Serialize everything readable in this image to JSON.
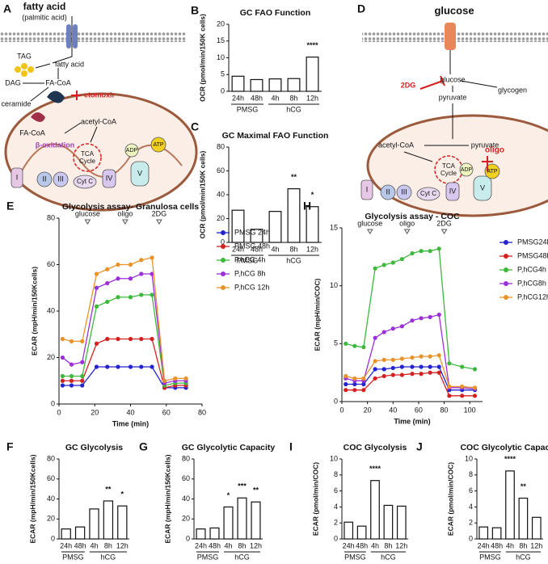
{
  "diagrams": [
    {
      "letter": "A",
      "title": "fatty acid",
      "subtitle": "(palmitic acid)",
      "labels": [
        "TAG",
        "fatty acid",
        "DAG",
        "FA-CoA",
        "etomoxir",
        "ceramide",
        "FA-CoA",
        "acetyl-CoA",
        "β-oxidation",
        "TCA",
        "Cycle",
        "ADP",
        "ATP",
        "I",
        "II",
        "III",
        "Cyt C",
        "IV",
        "V"
      ]
    },
    {
      "letter": "D",
      "title": "glucose",
      "labels": [
        "2DG",
        "glucose",
        "glycogen",
        "pyruvate",
        "acetyl-CoA",
        "pyruvate",
        "TCA",
        "Cycle",
        "oligo",
        "ADP",
        "ATP",
        "I",
        "II",
        "III",
        "Cyt C",
        "IV",
        "V"
      ]
    }
  ],
  "chart_data": [
    {
      "type": "bar",
      "panel": "B",
      "title": "GC FAO Function",
      "ylabel": "OCR (pmol/min/150K cells)",
      "categories": [
        "24h",
        "48h",
        "4h",
        "8h",
        "12h"
      ],
      "groups": [
        {
          "name": "PMSG",
          "size": 2
        },
        {
          "name": "hCG",
          "size": 3
        }
      ],
      "values": [
        4.5,
        3.5,
        3.7,
        3.8,
        10.2
      ],
      "significance": [
        null,
        null,
        null,
        null,
        "****"
      ],
      "ylim": [
        0,
        20
      ],
      "yticks": [
        0,
        5,
        10,
        15,
        20
      ]
    },
    {
      "type": "bar",
      "panel": "C",
      "title": "GC Maximal FAO Function",
      "ylabel": "OCR (pmol/min/150K cells)",
      "categories": [
        "24h",
        "48h",
        "4h",
        "8h",
        "12h"
      ],
      "groups": [
        {
          "name": "PMSG",
          "size": 2
        },
        {
          "name": "hCG",
          "size": 3
        }
      ],
      "values": [
        27,
        11,
        26,
        45,
        30
      ],
      "significance": [
        null,
        null,
        null,
        "**",
        "*"
      ],
      "ylim": [
        0,
        80
      ],
      "yticks": [
        0,
        20,
        40,
        60,
        80
      ]
    },
    {
      "type": "line",
      "panel": "E",
      "title": "Glycolysis assay- Granulosa cells",
      "ylabel": "ECAR (mpH/min/150Kcells)",
      "xlabel": "Time (min)",
      "x": [
        2,
        7,
        13,
        21,
        27,
        33,
        40,
        46,
        52,
        59,
        65,
        71
      ],
      "injections": [
        {
          "label": "glucose",
          "x": 16
        },
        {
          "label": "oligo",
          "x": 37
        },
        {
          "label": "2DG",
          "x": 56
        }
      ],
      "series": [
        {
          "name": "PMSG 24h",
          "color": "#2323d0",
          "values": [
            8,
            8,
            8,
            16,
            16,
            16,
            16,
            16,
            16,
            7,
            7,
            7
          ]
        },
        {
          "name": "PMSG 48h",
          "color": "#d42020",
          "values": [
            10,
            10,
            10,
            26,
            28,
            28,
            28,
            28,
            28,
            7,
            8,
            8
          ]
        },
        {
          "name": "P,hCG 4h",
          "color": "#3cb93c",
          "values": [
            12,
            12,
            12,
            42,
            44,
            46,
            46,
            47,
            47,
            8,
            9,
            9
          ]
        },
        {
          "name": "P,hCG 8h",
          "color": "#9b30d9",
          "values": [
            20,
            17,
            18,
            50,
            52,
            54,
            54,
            56,
            56,
            9,
            10,
            10
          ]
        },
        {
          "name": "P,hCG 12h",
          "color": "#e8932a",
          "values": [
            28,
            27,
            27,
            56,
            58,
            60,
            60,
            62,
            63,
            10,
            11,
            11
          ]
        }
      ],
      "xlim": [
        0,
        80
      ],
      "xticks": [
        0,
        20,
        40,
        60,
        80
      ],
      "ylim": [
        0,
        80
      ],
      "yticks": [
        0,
        20,
        40,
        60,
        80
      ]
    },
    {
      "type": "line",
      "panel": "H",
      "title": "Glycolysis assay - COC",
      "ylabel": "ECAR (mpH/min/COC)",
      "xlabel": "Time (min)",
      "x": [
        3,
        10,
        17,
        26,
        33,
        40,
        47,
        55,
        62,
        69,
        76,
        84,
        94,
        104
      ],
      "injections": [
        {
          "label": "glucose",
          "x": 22
        },
        {
          "label": "oligo",
          "x": 51
        },
        {
          "label": "2DG",
          "x": 80
        }
      ],
      "series": [
        {
          "name": "PMSG24h",
          "color": "#2323d0",
          "values": [
            1.5,
            1.5,
            1.5,
            2.8,
            2.8,
            2.9,
            3,
            3,
            3,
            3,
            3,
            1,
            1,
            1
          ]
        },
        {
          "name": "PMSG48h",
          "color": "#d42020",
          "values": [
            1,
            1,
            1,
            2,
            2.2,
            2.3,
            2.3,
            2.4,
            2.4,
            2.5,
            2.5,
            0.5,
            0.5,
            0.5
          ]
        },
        {
          "name": "P,hCG4h",
          "color": "#3cb93c",
          "values": [
            5,
            4.8,
            4.7,
            11.5,
            11.8,
            12,
            12.3,
            12.8,
            13,
            13,
            13.2,
            3.3,
            3,
            2.8
          ]
        },
        {
          "name": "P,hCG8h",
          "color": "#9b30d9",
          "values": [
            2,
            1.8,
            1.8,
            5.5,
            6,
            6.3,
            6.5,
            7,
            7.2,
            7.3,
            7.5,
            1.2,
            1.2,
            1.1
          ]
        },
        {
          "name": "P,hCG12h",
          "color": "#e8932a",
          "values": [
            2.2,
            2,
            2,
            3.5,
            3.6,
            3.6,
            3.7,
            3.8,
            3.9,
            3.9,
            4,
            1.3,
            1.3,
            1.2
          ]
        }
      ],
      "xlim": [
        0,
        110
      ],
      "xticks": [
        0,
        20,
        40,
        60,
        80,
        100
      ],
      "ylim": [
        0,
        15
      ],
      "yticks": [
        0,
        5,
        10,
        15
      ]
    },
    {
      "type": "bar",
      "panel": "F",
      "title": "GC Glycolysis",
      "ylabel": "ECAR (mpH/min/150Kcells)",
      "categories": [
        "24h",
        "48h",
        "4h",
        "8h",
        "12h"
      ],
      "groups": [
        {
          "name": "PMSG",
          "size": 2
        },
        {
          "name": "hCG",
          "size": 3
        }
      ],
      "values": [
        10,
        12,
        30,
        38,
        33
      ],
      "significance": [
        null,
        null,
        null,
        "**",
        "*"
      ],
      "ylim": [
        0,
        80
      ],
      "yticks": [
        0,
        20,
        40,
        60,
        80
      ]
    },
    {
      "type": "bar",
      "panel": "G",
      "title": "GC Glycolytic Capacity",
      "ylabel": "ECAR (mpH/min/150Kcells)",
      "categories": [
        "24h",
        "48h",
        "4h",
        "8h",
        "12h"
      ],
      "groups": [
        {
          "name": "PMSG",
          "size": 2
        },
        {
          "name": "hCG",
          "size": 3
        }
      ],
      "values": [
        10,
        11,
        32,
        41,
        37
      ],
      "significance": [
        null,
        null,
        "*",
        "***",
        "**"
      ],
      "ylim": [
        0,
        80
      ],
      "yticks": [
        0,
        20,
        40,
        60,
        80
      ]
    },
    {
      "type": "bar",
      "panel": "I",
      "title": "COC Glycolysis",
      "ylabel": "ECAR (pmol/min/COC)",
      "categories": [
        "24h",
        "48h",
        "4h",
        "8h",
        "12h"
      ],
      "groups": [
        {
          "name": "PMSG",
          "size": 2
        },
        {
          "name": "hCG",
          "size": 3
        }
      ],
      "values": [
        2.1,
        1.6,
        7.3,
        4.2,
        4.1
      ],
      "significance": [
        null,
        null,
        "****",
        null,
        null
      ],
      "ylim": [
        0,
        10
      ],
      "yticks": [
        0,
        2,
        4,
        6,
        8,
        10
      ]
    },
    {
      "type": "bar",
      "panel": "J",
      "title": "COC Glycolytic Capacity",
      "ylabel": "ECAR (pmol/min/COC)",
      "categories": [
        "24h",
        "48h",
        "4h",
        "8h",
        "12h"
      ],
      "groups": [
        {
          "name": "PMSG",
          "size": 2
        },
        {
          "name": "hCG",
          "size": 3
        }
      ],
      "values": [
        1.5,
        1.4,
        8.5,
        5.1,
        2.7
      ],
      "significance": [
        null,
        null,
        "****",
        "**",
        null
      ],
      "ylim": [
        0,
        10
      ],
      "yticks": [
        0,
        2,
        4,
        6,
        8,
        10
      ]
    }
  ]
}
